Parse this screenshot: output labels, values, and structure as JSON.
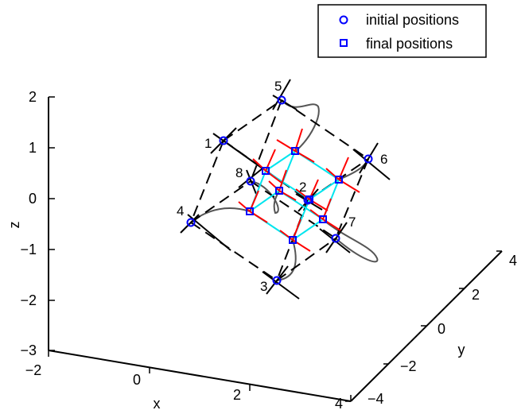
{
  "chart_data": {
    "type": "scatter",
    "title": "",
    "xlabel": "x",
    "ylabel": "y",
    "zlabel": "z",
    "xlim": [
      -2,
      4
    ],
    "ylim": [
      -4,
      4
    ],
    "zlim": [
      -3,
      2
    ],
    "x_ticks": [
      "−2",
      "0",
      "2",
      "4"
    ],
    "y_ticks": [
      "−4",
      "−2",
      "0",
      "2",
      "4"
    ],
    "z_ticks": [
      "−3",
      "−2",
      "−1",
      "0",
      "1",
      "2"
    ],
    "grid": false,
    "legend_location": "top-right",
    "legend": [
      {
        "label": "initial positions",
        "marker": "circle",
        "color": "#0000ff"
      },
      {
        "label": "final positions",
        "marker": "square",
        "color": "#0000ff"
      }
    ],
    "point_labels": [
      "1",
      "2",
      "3",
      "4",
      "5",
      "6",
      "7",
      "8"
    ],
    "colors": {
      "markers": "#0000ff",
      "initial_cube": "#000000",
      "final_cube": "#00e5ee",
      "arrows": "#ff0000",
      "trajectories": "#555555"
    }
  }
}
